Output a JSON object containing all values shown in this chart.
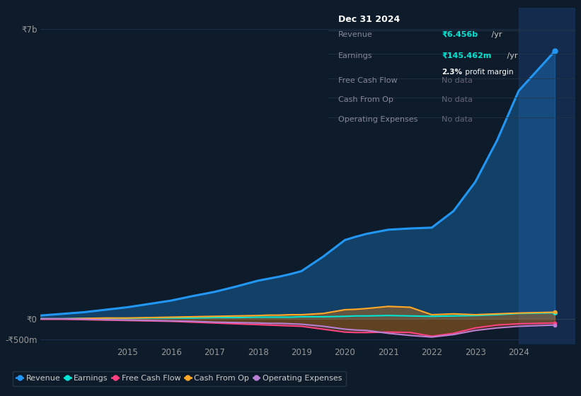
{
  "background_color": "#0d1b2a",
  "plot_bg_color": "#0d1b2a",
  "grid_color": "#1e3050",
  "title_box": {
    "date": "Dec 31 2024",
    "revenue_label": "Revenue",
    "revenue_value": "₹6.456b",
    "revenue_suffix": " /yr",
    "earnings_label": "Earnings",
    "earnings_value": "₹145.462m",
    "earnings_suffix": " /yr",
    "margin_text": "2.3%",
    "margin_suffix": " profit margin",
    "fcf_label": "Free Cash Flow",
    "fcf_value": "No data",
    "cfo_label": "Cash From Op",
    "cfo_value": "No data",
    "opex_label": "Operating Expenses",
    "opex_value": "No data"
  },
  "years": [
    2013.0,
    2013.5,
    2014.0,
    2014.5,
    2015.0,
    2015.5,
    2016.0,
    2016.5,
    2017.0,
    2017.5,
    2018.0,
    2018.25,
    2018.5,
    2018.75,
    2019.0,
    2019.5,
    2020.0,
    2020.25,
    2020.5,
    2021.0,
    2021.5,
    2022.0,
    2022.5,
    2023.0,
    2023.5,
    2024.0,
    2024.83
  ],
  "revenue": [
    0.08,
    0.12,
    0.16,
    0.22,
    0.28,
    0.36,
    0.44,
    0.55,
    0.65,
    0.78,
    0.92,
    0.97,
    1.02,
    1.08,
    1.15,
    1.5,
    1.9,
    1.98,
    2.05,
    2.15,
    2.18,
    2.2,
    2.6,
    3.3,
    4.3,
    5.5,
    6.456
  ],
  "earnings": [
    0.0,
    0.0,
    0.01,
    0.01,
    0.01,
    0.02,
    0.02,
    0.02,
    0.03,
    0.03,
    0.04,
    0.04,
    0.04,
    0.04,
    0.05,
    0.05,
    0.06,
    0.07,
    0.07,
    0.08,
    0.07,
    0.06,
    0.07,
    0.08,
    0.1,
    0.13,
    0.145
  ],
  "free_cash_flow": [
    -0.01,
    -0.01,
    -0.02,
    -0.03,
    -0.04,
    -0.05,
    -0.06,
    -0.08,
    -0.1,
    -0.12,
    -0.14,
    -0.15,
    -0.16,
    -0.17,
    -0.18,
    -0.25,
    -0.32,
    -0.33,
    -0.33,
    -0.32,
    -0.33,
    -0.42,
    -0.35,
    -0.22,
    -0.15,
    -0.12,
    -0.1
  ],
  "cash_from_op": [
    0.0,
    0.0,
    0.01,
    0.02,
    0.02,
    0.03,
    0.04,
    0.05,
    0.06,
    0.07,
    0.08,
    0.09,
    0.09,
    0.1,
    0.1,
    0.13,
    0.22,
    0.23,
    0.25,
    0.3,
    0.28,
    0.1,
    0.12,
    0.1,
    0.12,
    0.14,
    0.16
  ],
  "operating_exp": [
    0.0,
    0.0,
    -0.01,
    -0.02,
    -0.03,
    -0.04,
    -0.05,
    -0.06,
    -0.08,
    -0.09,
    -0.1,
    -0.11,
    -0.11,
    -0.12,
    -0.13,
    -0.18,
    -0.25,
    -0.27,
    -0.28,
    -0.35,
    -0.4,
    -0.44,
    -0.38,
    -0.28,
    -0.22,
    -0.18,
    -0.15
  ],
  "revenue_color": "#2196f3",
  "earnings_color": "#00e5d4",
  "fcf_color": "#ff4081",
  "cfo_color": "#ffa726",
  "opex_color": "#b97fd4",
  "highlight_color": "#1a3a6a",
  "highlight_alpha": 0.55,
  "ylim_min": -0.62,
  "ylim_max": 7.5,
  "ytick_positions": [
    -0.5,
    0.0,
    7.0
  ],
  "ytick_labels": [
    "-₹500m",
    "₹0",
    "₹7b"
  ],
  "xticks": [
    2015,
    2016,
    2017,
    2018,
    2019,
    2020,
    2021,
    2022,
    2023,
    2024
  ],
  "xlim_min": 2013.0,
  "xlim_max": 2025.3,
  "legend_labels": [
    "Revenue",
    "Earnings",
    "Free Cash Flow",
    "Cash From Op",
    "Operating Expenses"
  ],
  "legend_colors": [
    "#2196f3",
    "#00e5d4",
    "#ff4081",
    "#ffa726",
    "#b97fd4"
  ]
}
